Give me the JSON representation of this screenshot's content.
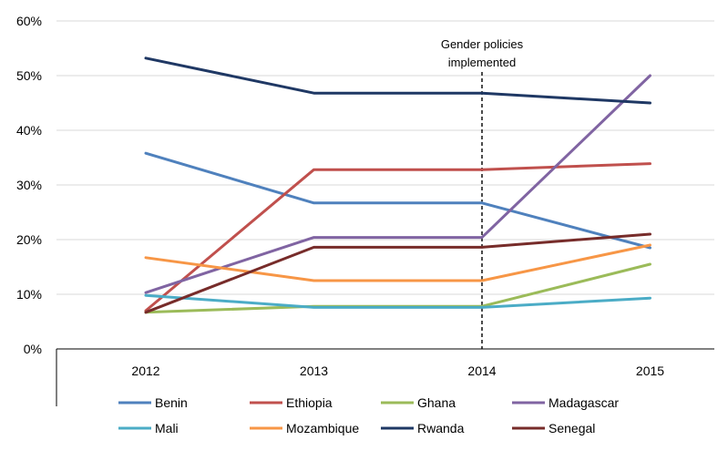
{
  "chart_data": {
    "type": "line",
    "categories": [
      "2012",
      "2013",
      "2014",
      "2015"
    ],
    "ylim": [
      0,
      60
    ],
    "y_ticks": [
      "0%",
      "10%",
      "20%",
      "30%",
      "40%",
      "50%",
      "60%"
    ],
    "grid": true,
    "legend_position": "bottom",
    "annotation": {
      "lines": [
        "Gender policies",
        "implemented"
      ],
      "category": "2014"
    },
    "series": [
      {
        "name": "Benin",
        "color": "#4f81bd",
        "values": [
          35.8,
          26.7,
          26.7,
          18.5
        ]
      },
      {
        "name": "Ethiopia",
        "color": "#c0504d",
        "values": [
          7.0,
          32.8,
          32.8,
          33.9
        ]
      },
      {
        "name": "Ghana",
        "color": "#9bbb59",
        "values": [
          6.7,
          7.8,
          7.8,
          15.5
        ]
      },
      {
        "name": "Madagascar",
        "color": "#8064a2",
        "values": [
          10.3,
          20.4,
          20.4,
          50.0
        ]
      },
      {
        "name": "Mali",
        "color": "#4bacc6",
        "values": [
          9.8,
          7.6,
          7.6,
          9.3
        ]
      },
      {
        "name": "Mozambique",
        "color": "#f79646",
        "values": [
          16.7,
          12.5,
          12.5,
          19.0
        ]
      },
      {
        "name": "Rwanda",
        "color": "#1f3864",
        "values": [
          53.2,
          46.8,
          46.8,
          45.0
        ]
      },
      {
        "name": "Senegal",
        "color": "#772c2a",
        "values": [
          6.7,
          18.6,
          18.6,
          21.0
        ]
      }
    ]
  }
}
